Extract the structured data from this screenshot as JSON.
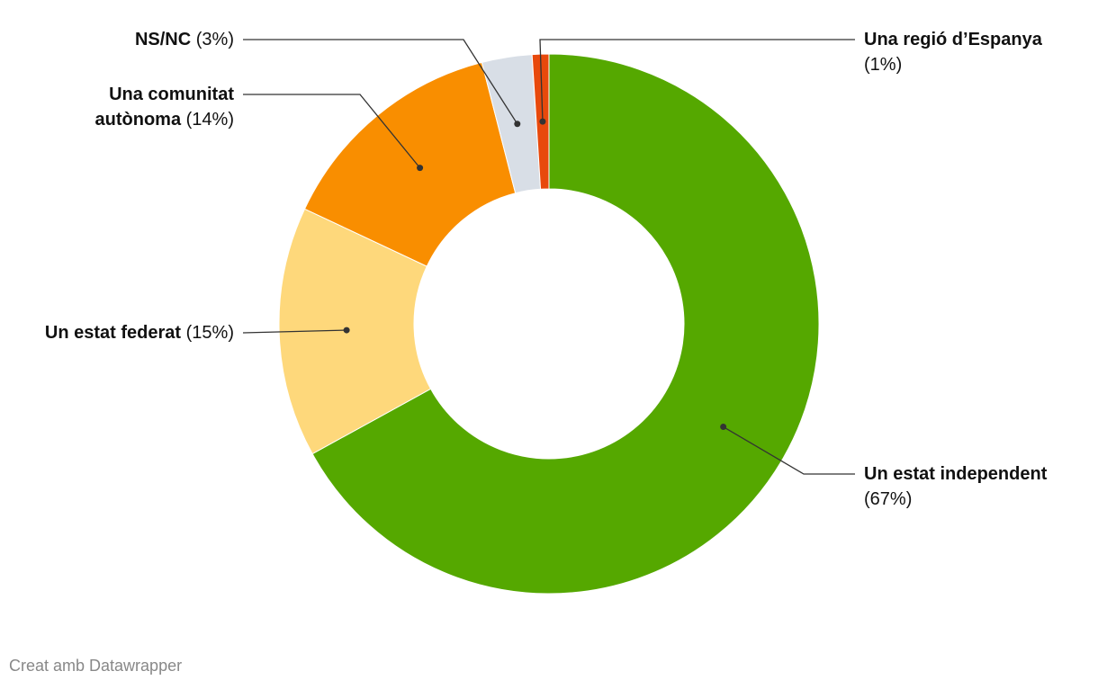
{
  "chart_data": {
    "type": "donut",
    "categories": [
      "Un estat independent",
      "Un estat federat",
      "Una comunitat autònoma",
      "NS/NC",
      "Una regió d’Espanya"
    ],
    "values": [
      67,
      15,
      14,
      3,
      1
    ],
    "value_labels": [
      "(67%)",
      "(15%)",
      "(14%)",
      "(3%)",
      "(1%)"
    ],
    "colors": [
      "#55a800",
      "#fed87b",
      "#f98e00",
      "#d8dee6",
      "#e8490c"
    ],
    "footer": "Creat amb Datawrapper"
  }
}
